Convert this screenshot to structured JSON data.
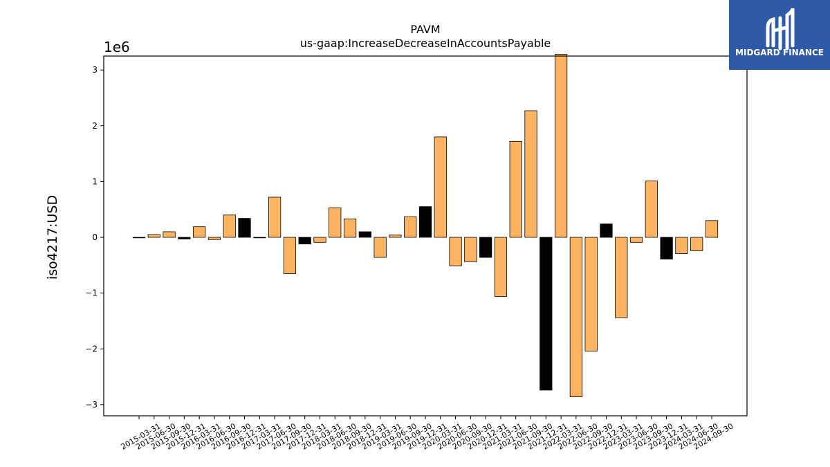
{
  "chart_data": {
    "type": "bar",
    "title": "PAVM",
    "subtitle": "us-gaap:IncreaseDecreaseInAccountsPayable",
    "ylabel": "iso4217:USD",
    "xlabel": "",
    "y_offset_text": "1e6",
    "ylim": [
      -3.2,
      3.25
    ],
    "yticks": [
      -3,
      -2,
      -1,
      0,
      1,
      2,
      3
    ],
    "ytick_labels": [
      "−3",
      "−2",
      "−1",
      "0",
      "1",
      "2",
      "3"
    ],
    "grid": false,
    "units_multiplier": 1000000,
    "categories": [
      "2015-03-31",
      "2015-06-30",
      "2015-09-30",
      "2015-12-31",
      "2016-03-31",
      "2016-06-30",
      "2016-09-30",
      "2016-12-31",
      "2017-03-31",
      "2017-06-30",
      "2017-09-30",
      "2017-12-31",
      "2018-03-31",
      "2018-06-30",
      "2018-09-30",
      "2018-12-31",
      "2019-03-31",
      "2019-06-30",
      "2019-09-30",
      "2019-12-31",
      "2020-03-31",
      "2020-06-30",
      "2020-09-30",
      "2020-12-31",
      "2021-03-31",
      "2021-06-30",
      "2021-09-30",
      "2021-12-31",
      "2022-03-31",
      "2022-06-30",
      "2022-09-30",
      "2022-12-31",
      "2023-03-31",
      "2023-06-30",
      "2023-09-30",
      "2023-12-31",
      "2024-03-31",
      "2024-06-30",
      "2024-09-30"
    ],
    "values": [
      -0.01,
      0.05,
      0.1,
      -0.03,
      0.19,
      -0.04,
      0.4,
      0.34,
      -0.01,
      0.72,
      -0.65,
      -0.12,
      -0.09,
      0.53,
      0.33,
      0.1,
      -0.36,
      0.04,
      0.37,
      0.55,
      1.8,
      -0.51,
      -0.44,
      -0.36,
      -1.06,
      1.72,
      2.27,
      -2.74,
      3.28,
      -2.86,
      -2.04,
      0.24,
      -1.44,
      -0.09,
      1.01,
      -0.39,
      -0.29,
      -0.24,
      0.3
    ],
    "bar_colors": [
      "#000000",
      "#fdb462",
      "#fdb462",
      "#000000",
      "#fdb462",
      "#fdb462",
      "#fdb462",
      "#000000",
      "#000000",
      "#fdb462",
      "#fdb462",
      "#000000",
      "#fdb462",
      "#fdb462",
      "#fdb462",
      "#000000",
      "#fdb462",
      "#fdb462",
      "#fdb462",
      "#000000",
      "#fdb462",
      "#fdb462",
      "#fdb462",
      "#000000",
      "#fdb462",
      "#fdb462",
      "#fdb462",
      "#000000",
      "#fdb462",
      "#fdb462",
      "#fdb462",
      "#000000",
      "#fdb462",
      "#fdb462",
      "#fdb462",
      "#000000",
      "#fdb462",
      "#fdb462",
      "#fdb462"
    ]
  },
  "logo": {
    "text": "MIDGARD FINANCE",
    "background": "#2f5aa8"
  },
  "colors": {
    "bar_default": "#fdb462",
    "bar_highlight": "#000000",
    "axis": "#000000"
  }
}
